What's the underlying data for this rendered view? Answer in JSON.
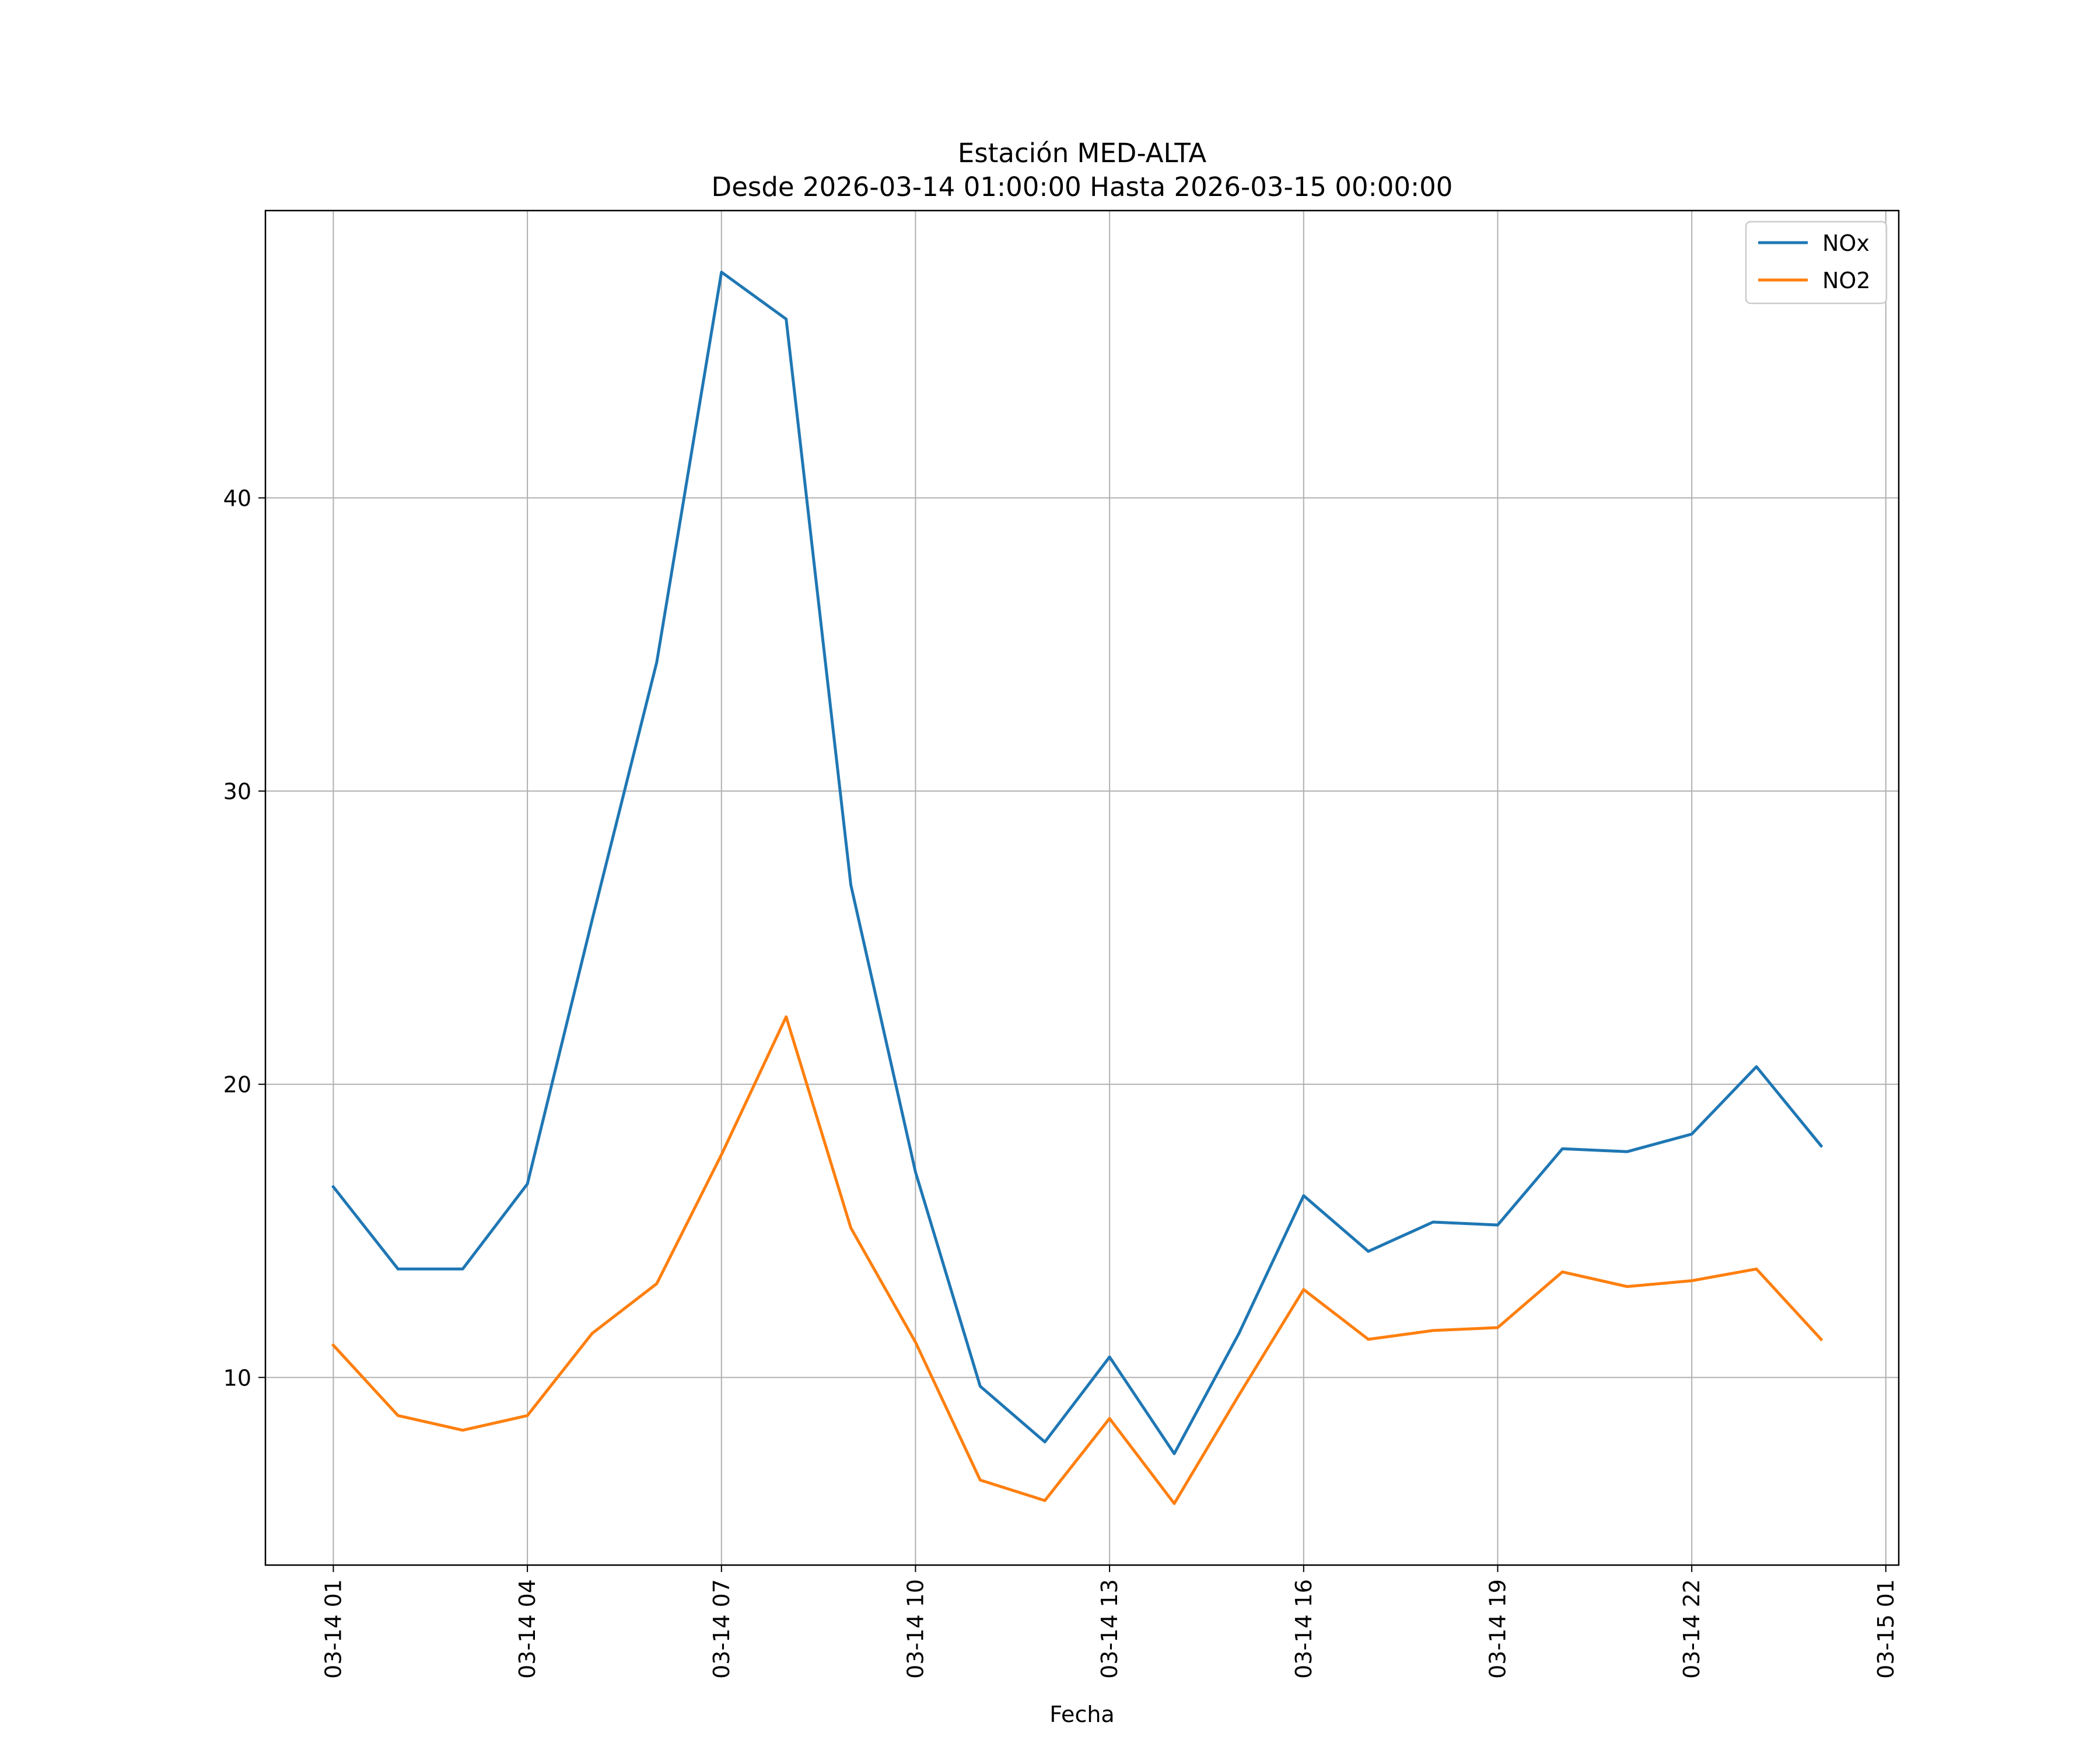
{
  "chart_data": {
    "type": "line",
    "title": "Estación MED-ALTA",
    "subtitle": "Desde 2026-03-14 01:00:00 Hasta 2026-03-15 00:00:00",
    "xlabel": "Fecha",
    "ylabel": "",
    "x": [
      1,
      2,
      3,
      4,
      5,
      6,
      7,
      8,
      9,
      10,
      11,
      12,
      13,
      14,
      15,
      16,
      17,
      18,
      19,
      20,
      21,
      22,
      23,
      24
    ],
    "xlim": [
      -0.05,
      25.2
    ],
    "ylim": [
      3.6,
      49.8
    ],
    "x_ticks": [
      {
        "value": 1,
        "label": "03-14 01"
      },
      {
        "value": 4,
        "label": "03-14 04"
      },
      {
        "value": 7,
        "label": "03-14 07"
      },
      {
        "value": 10,
        "label": "03-14 10"
      },
      {
        "value": 13,
        "label": "03-14 13"
      },
      {
        "value": 16,
        "label": "03-14 16"
      },
      {
        "value": 19,
        "label": "03-14 19"
      },
      {
        "value": 22,
        "label": "03-14 22"
      },
      {
        "value": 25,
        "label": "03-15 01"
      }
    ],
    "y_ticks": [
      {
        "value": 10,
        "label": "10"
      },
      {
        "value": 20,
        "label": "20"
      },
      {
        "value": 30,
        "label": "30"
      },
      {
        "value": 40,
        "label": "40"
      }
    ],
    "grid": true,
    "legend_position": "top-right",
    "series": [
      {
        "name": "NOx",
        "color": "#1f77b4",
        "values": [
          16.5,
          13.7,
          13.7,
          16.6,
          25.6,
          34.4,
          47.7,
          46.1,
          26.8,
          17.0,
          9.7,
          7.8,
          10.7,
          7.4,
          11.5,
          16.2,
          14.3,
          15.3,
          15.2,
          17.8,
          17.7,
          18.3,
          20.6,
          17.9
        ]
      },
      {
        "name": "NO2",
        "color": "#ff7f0e",
        "values": [
          11.1,
          8.7,
          8.2,
          8.7,
          11.5,
          13.2,
          17.6,
          22.3,
          15.1,
          11.2,
          6.5,
          5.8,
          8.6,
          5.7,
          9.4,
          13.0,
          11.3,
          11.6,
          11.7,
          13.6,
          13.1,
          13.3,
          13.7,
          11.3
        ]
      }
    ]
  }
}
